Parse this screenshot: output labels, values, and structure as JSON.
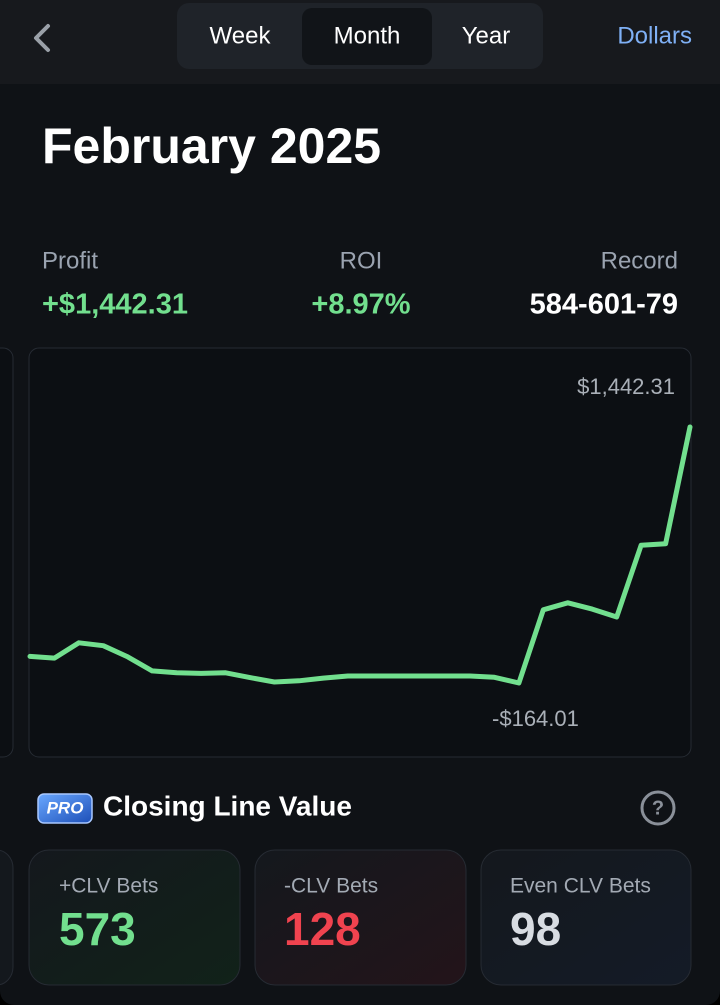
{
  "nav": {
    "tabs": [
      "Week",
      "Month",
      "Year"
    ],
    "active_tab": 1,
    "unit": "Dollars"
  },
  "header": {
    "title": "February 2025"
  },
  "stats": [
    {
      "label": "Profit",
      "value": "+$1,442.31"
    },
    {
      "label": "ROI",
      "value": "+8.97%"
    },
    {
      "label": "Record",
      "value": "584-601-79"
    }
  ],
  "chart_data": {
    "type": "line",
    "color": "#72df8e",
    "max_label": "$1,442.31",
    "min_label": "-$164.01",
    "values": [
      3,
      -8,
      88,
      70,
      0,
      -88,
      -100,
      -104,
      -100,
      -130,
      -158,
      -150,
      -133,
      -120,
      -120,
      -120,
      -120,
      -120,
      -120,
      -128,
      -164.01,
      295,
      339,
      300,
      250,
      700,
      710,
      1442.31
    ]
  },
  "clv": {
    "badge": "PRO",
    "title": "Closing Line Value",
    "help": "?",
    "cards": [
      {
        "label": "+CLV Bets",
        "value": 573
      },
      {
        "label": "-CLV Bets",
        "value": 128
      },
      {
        "label": "Even CLV Bets",
        "value": 98
      }
    ]
  }
}
